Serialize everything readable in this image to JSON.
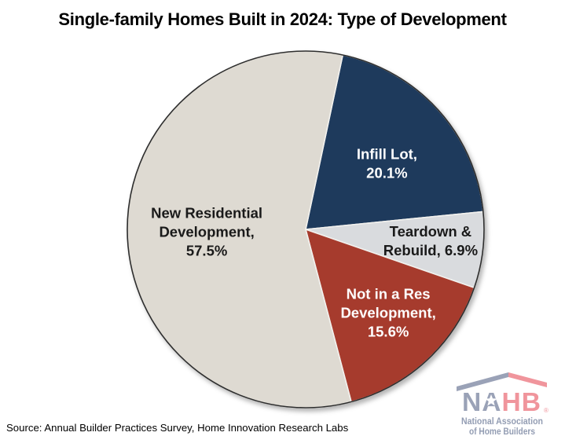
{
  "title": "Single-family Homes Built in 2024: Type of Development",
  "source_note": "Source: Annual Builder Practices Survey, Home Innovation Research Labs",
  "chart_data": {
    "type": "pie",
    "title": "Single-family Homes Built in 2024: Type of Development",
    "start_angle_deg": 12,
    "direction": "clockwise",
    "legend_position": "none",
    "slices": [
      {
        "id": "infill-lot",
        "label": "Infill Lot",
        "value": 20.1,
        "color": "#1e3a5c",
        "label_color": "#ffffff",
        "label_lines": [
          "Infill Lot,",
          "20.1%"
        ]
      },
      {
        "id": "teardown-rebuild",
        "label": "Teardown & Rebuild",
        "value": 6.9,
        "color": "#d9dbde",
        "label_color": "#1a1a1a",
        "label_lines": [
          "Teardown &",
          "Rebuild, 6.9%"
        ]
      },
      {
        "id": "not-in-res-development",
        "label": "Not in a Res Development",
        "value": 15.6,
        "color": "#a63b2d",
        "label_color": "#ffffff",
        "label_lines": [
          "Not in a Res",
          "Development,",
          "15.6%"
        ]
      },
      {
        "id": "new-residential-development",
        "label": "New Residential Development",
        "value": 57.5,
        "color": "#dedad2",
        "label_color": "#1a1a1a",
        "label_lines": [
          "New Residential",
          "Development,",
          "57.5%"
        ]
      }
    ],
    "source": "Source: Annual Builder Practices Survey, Home Innovation Research Labs"
  },
  "logo": {
    "acronym_left": "NA",
    "acronym_right": "HB",
    "registered_mark": "®",
    "tagline_line1": "National Association",
    "tagline_line2": "of Home Builders",
    "colors": {
      "blue_gray": "#9aa2b7",
      "red_pink": "#f0959c"
    }
  }
}
